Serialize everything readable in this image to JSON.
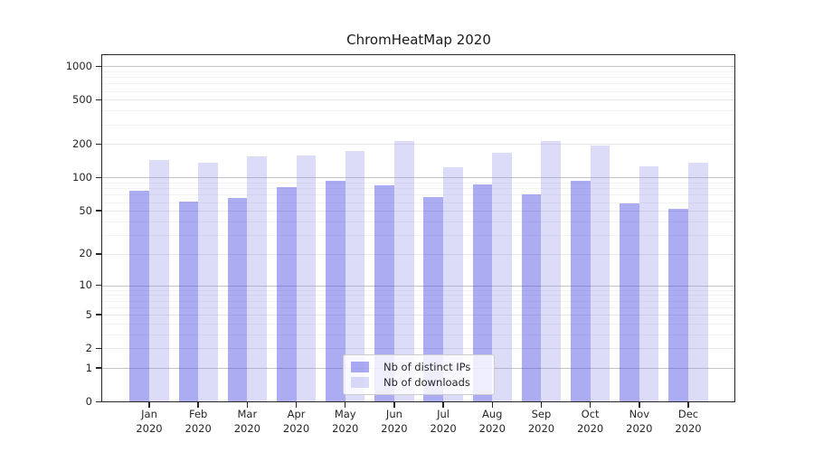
{
  "chart_data": {
    "type": "bar",
    "title": "ChromHeatMap 2020",
    "categories": [
      "Jan",
      "Feb",
      "Mar",
      "Apr",
      "May",
      "Jun",
      "Jul",
      "Aug",
      "Sep",
      "Oct",
      "Nov",
      "Dec"
    ],
    "x_year_label": "2020",
    "series": [
      {
        "name": "Nb of distinct IPs",
        "color": "rgba(72,72,228,0.45)",
        "values": [
          76,
          61,
          65,
          82,
          93,
          85,
          67,
          87,
          70,
          93,
          58,
          52
        ]
      },
      {
        "name": "Nb of downloads",
        "color": "rgba(150,150,238,0.33)",
        "values": [
          144,
          136,
          155,
          158,
          174,
          215,
          125,
          167,
          215,
          194,
          126,
          136
        ]
      }
    ],
    "y_axis": {
      "scale": "symlog log10(v+1)",
      "ticks": [
        0,
        1,
        2,
        5,
        10,
        20,
        50,
        100,
        200,
        500,
        1000
      ],
      "decade_ticks": [
        1,
        10,
        100,
        1000
      ],
      "minor_gridlines": [
        3,
        4,
        6,
        7,
        8,
        9,
        30,
        40,
        60,
        70,
        80,
        90,
        300,
        400,
        600,
        700,
        800,
        900
      ],
      "range": [
        0,
        1280
      ],
      "grid": true
    },
    "legend": {
      "position": "lower center"
    }
  },
  "colors": {
    "grid_major": "#c3c3c3",
    "grid_labeled": "#e7e7e7",
    "grid_minor": "#f2f2f2",
    "axis": "#262626",
    "text": "#262626",
    "legend_border": "#cccccc",
    "legend_bg": "rgba(255,255,255,0.8)"
  }
}
